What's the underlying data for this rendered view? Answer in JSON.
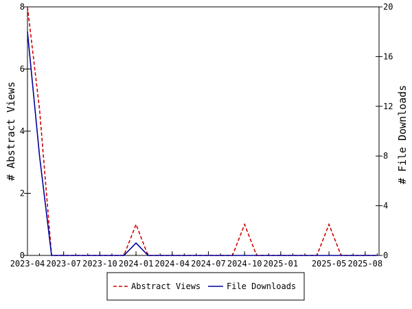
{
  "chart_data": {
    "type": "line",
    "x": [
      "2023-04",
      "2023-05",
      "2023-06",
      "2023-07",
      "2023-08",
      "2023-09",
      "2023-10",
      "2023-11",
      "2023-12",
      "2024-01",
      "2024-02",
      "2024-03",
      "2024-04",
      "2024-05",
      "2024-06",
      "2024-07",
      "2024-08",
      "2024-09",
      "2024-10",
      "2024-11",
      "2024-12",
      "2025-01",
      "2025-02",
      "2025-03",
      "2025-04",
      "2025-05",
      "2025-06",
      "2025-07",
      "2025-08",
      "2025-09"
    ],
    "x_tick_labels": [
      "2023-04",
      "2023-07",
      "2023-10",
      "2024-01",
      "2024-04",
      "2024-07",
      "2024-10",
      "2025-01",
      "2025-05",
      "2025-08"
    ],
    "series": [
      {
        "name": "Abstract Views",
        "axis": "left",
        "color": "#cc0000",
        "style": "dashed",
        "values": [
          8,
          4.7,
          0,
          0,
          0,
          0,
          0,
          0,
          0,
          1,
          0,
          0,
          0,
          0,
          0,
          0,
          0,
          0,
          1,
          0,
          0,
          0,
          0,
          0,
          0,
          1,
          0,
          0,
          0,
          0
        ]
      },
      {
        "name": "File Downloads",
        "axis": "right",
        "color": "#000099",
        "style": "solid",
        "values": [
          18,
          8,
          0,
          0,
          0,
          0,
          0,
          0,
          0,
          1,
          0,
          0,
          0,
          0,
          0,
          0,
          0,
          0,
          0,
          0,
          0,
          0,
          0,
          0,
          0,
          0,
          0,
          0,
          0,
          0
        ]
      }
    ],
    "ylabel": "# Abstract Views",
    "ylim": [
      0,
      8
    ],
    "yticks": [
      0,
      2,
      4,
      6,
      8
    ],
    "y2label": "# File Downloads",
    "y2lim": [
      0,
      20
    ],
    "y2ticks": [
      0,
      4,
      8,
      12,
      16,
      20
    ],
    "grid": false,
    "legend": "bottom"
  }
}
